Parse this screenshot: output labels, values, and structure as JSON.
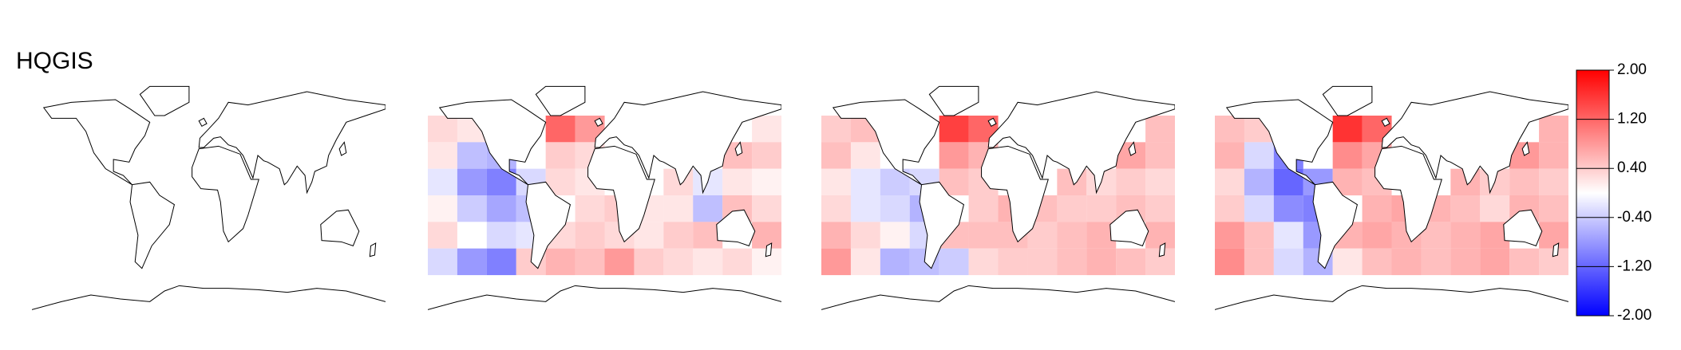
{
  "figure": {
    "title": "HQGIS",
    "panels": [
      {
        "values": [
          [
            0.3,
            0.2,
            null,
            null,
            1.2,
            0.8,
            null,
            null,
            null,
            null,
            null,
            0.2
          ],
          [
            0.2,
            -0.5,
            -0.6,
            null,
            0.4,
            0.3,
            null,
            null,
            null,
            null,
            0.5,
            0.4
          ],
          [
            -0.2,
            -0.8,
            -1.0,
            -0.3,
            0.3,
            0.2,
            null,
            null,
            0.3,
            -0.2,
            0.2,
            0.1
          ],
          [
            0.1,
            -0.4,
            -0.7,
            -0.5,
            null,
            0.3,
            0.4,
            0.2,
            0.2,
            -0.5,
            0.5,
            0.3
          ],
          [
            0.3,
            0.0,
            -0.3,
            -0.2,
            0.3,
            0.4,
            0.3,
            0.2,
            0.4,
            0.5,
            null,
            0.6
          ],
          [
            -0.3,
            -0.8,
            -1.0,
            0.4,
            0.6,
            0.5,
            0.8,
            0.4,
            0.3,
            0.2,
            0.3,
            0.1
          ]
        ]
      },
      {
        "values": [
          [
            0.4,
            0.5,
            null,
            null,
            1.5,
            1.2,
            null,
            null,
            null,
            null,
            null,
            0.5
          ],
          [
            0.5,
            0.2,
            0.0,
            null,
            0.8,
            0.6,
            null,
            null,
            null,
            null,
            0.7,
            0.5
          ],
          [
            0.2,
            -0.2,
            -0.4,
            -0.3,
            0.5,
            0.4,
            null,
            null,
            0.5,
            0.3,
            0.4,
            0.3
          ],
          [
            0.3,
            -0.2,
            -0.3,
            -0.6,
            null,
            0.4,
            0.6,
            0.5,
            0.4,
            0.4,
            0.5,
            0.4
          ],
          [
            0.6,
            0.3,
            0.1,
            -0.3,
            0.5,
            0.5,
            0.5,
            0.4,
            0.5,
            0.6,
            null,
            0.6
          ],
          [
            0.8,
            0.2,
            -0.6,
            -0.5,
            -0.4,
            0.3,
            0.4,
            0.4,
            0.5,
            0.6,
            0.5,
            0.4
          ]
        ]
      },
      {
        "values": [
          [
            0.5,
            0.4,
            null,
            null,
            1.6,
            1.2,
            null,
            null,
            null,
            null,
            null,
            0.6
          ],
          [
            0.6,
            -0.3,
            -1.0,
            null,
            0.9,
            0.7,
            null,
            null,
            null,
            null,
            0.8,
            0.6
          ],
          [
            0.3,
            -0.6,
            -1.2,
            -0.8,
            0.6,
            0.5,
            null,
            null,
            0.6,
            0.4,
            0.5,
            0.4
          ],
          [
            0.4,
            -0.3,
            -0.9,
            -1.0,
            null,
            0.6,
            0.7,
            0.6,
            0.5,
            0.3,
            0.6,
            0.5
          ],
          [
            0.8,
            0.5,
            -0.2,
            -0.8,
            0.6,
            0.7,
            0.6,
            0.5,
            0.6,
            0.7,
            null,
            0.7
          ],
          [
            0.9,
            0.5,
            -0.3,
            -0.6,
            0.2,
            0.5,
            0.6,
            0.5,
            0.6,
            0.7,
            0.5,
            0.4
          ]
        ]
      }
    ],
    "colorbar": {
      "clim": [
        -2,
        2
      ],
      "low_color": "#0000ff",
      "mid_color": "#ffffff",
      "high_color": "#ff0000",
      "ticks": [
        {
          "value": 2,
          "label": "2.00"
        },
        {
          "value": 1.2,
          "label": "1.20"
        },
        {
          "value": 0.4,
          "label": "0.40"
        },
        {
          "value": -0.4,
          "label": "-0.40"
        },
        {
          "value": -1.2,
          "label": "-1.20"
        },
        {
          "value": -2,
          "label": "-2.00"
        }
      ]
    }
  }
}
